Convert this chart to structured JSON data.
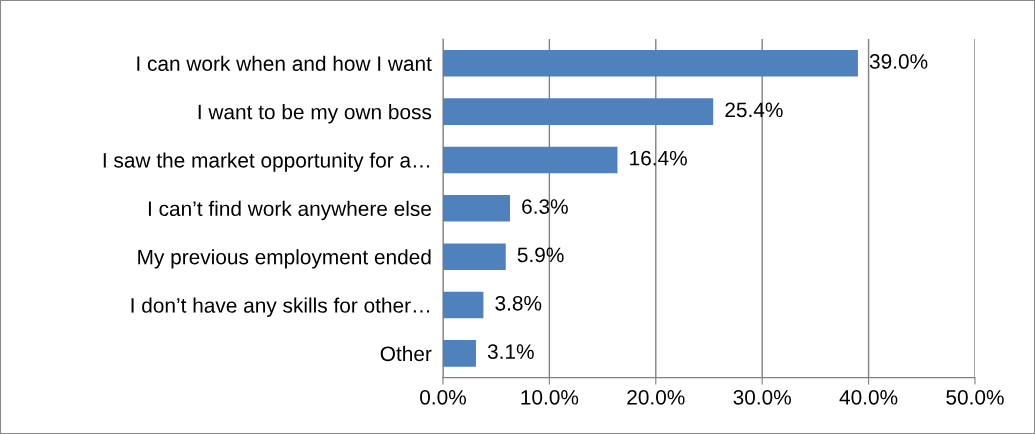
{
  "chart_data": {
    "type": "bar",
    "orientation": "horizontal",
    "categories": [
      "I can work when and how I want",
      "I want to be my own boss",
      "I saw the market opportunity for a…",
      "I can’t find work anywhere else",
      "My previous employment ended",
      "I don’t have any skills for other…",
      "Other"
    ],
    "values": [
      39.0,
      25.4,
      16.4,
      6.3,
      5.9,
      3.8,
      3.1
    ],
    "value_labels": [
      "39.0%",
      "25.4%",
      "16.4%",
      "6.3%",
      "5.9%",
      "3.8%",
      "3.1%"
    ],
    "color": "#4f81bd",
    "xlim": [
      0,
      50
    ],
    "xticks": [
      {
        "value": 0,
        "label": "0.0%"
      },
      {
        "value": 10,
        "label": "10.0%"
      },
      {
        "value": 20,
        "label": "20.0%"
      },
      {
        "value": 30,
        "label": "30.0%"
      },
      {
        "value": 40,
        "label": "40.0%"
      },
      {
        "value": 50,
        "label": "50.0%"
      }
    ],
    "grid": "x",
    "legend": false
  }
}
